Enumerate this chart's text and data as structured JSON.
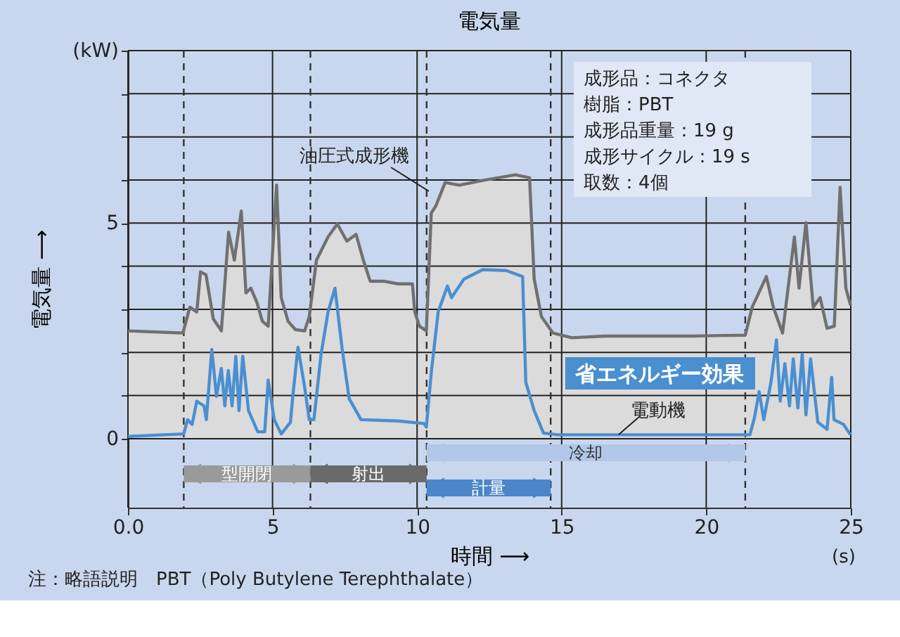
{
  "chart_data": {
    "type": "line",
    "title": "電気量",
    "xlabel": "時間 ⟶",
    "ylabel": "電気量 ⟶",
    "xlim": [
      0,
      25
    ],
    "ylim": [
      -1.6,
      9
    ],
    "xticks": [
      {
        "value": 0,
        "label": "0.0"
      },
      5,
      10,
      15,
      20,
      25
    ],
    "yticks": [
      0,
      {
        "value": 1,
        "label": null
      },
      {
        "value": 2,
        "label": null
      },
      {
        "value": 3,
        "label": null
      },
      {
        "value": 4,
        "label": null
      },
      5,
      {
        "value": 6,
        "label": null
      },
      {
        "value": 7,
        "label": null
      },
      {
        "value": 8,
        "label": null
      },
      {
        "value": 9,
        "label": "(kW)"
      }
    ],
    "grid": true,
    "marker": "none",
    "line_style": "solid",
    "series": [
      {
        "name": "油圧式成形機",
        "type": "area",
        "color": "#707070",
        "x": [
          0,
          1.9,
          2.14,
          2.38,
          2.51,
          2.7,
          2.95,
          3.23,
          3.48,
          3.68,
          3.92,
          4.08,
          4.25,
          4.46,
          4.65,
          4.85,
          5.14,
          5.3,
          5.54,
          5.79,
          6.11,
          6.27,
          6.52,
          6.92,
          7.24,
          7.57,
          7.89,
          8.14,
          8.38,
          8.87,
          9.35,
          9.84,
          9.92,
          10.08,
          10.32,
          10.49,
          10.65,
          10.97,
          11.46,
          12.27,
          13.4,
          13.89,
          14.05,
          14.3,
          14.7,
          15.35,
          16.5,
          18,
          19.5,
          21.35,
          21.59,
          22.08,
          22.32,
          22.64,
          23.05,
          23.21,
          23.45,
          23.7,
          23.94,
          24.18,
          24.43,
          24.63,
          24.83,
          24.99
        ],
        "values": [
          2.5,
          2.45,
          3.05,
          2.94,
          3.87,
          3.8,
          2.78,
          2.5,
          4.79,
          4.14,
          5.28,
          3.38,
          3.49,
          3.16,
          2.72,
          2.61,
          5.88,
          3.27,
          2.72,
          2.53,
          2.5,
          2.83,
          4.14,
          4.68,
          4.98,
          4.58,
          4.74,
          4.14,
          3.65,
          3.65,
          3.59,
          3.59,
          2.94,
          2.61,
          2.5,
          5.23,
          5.4,
          5.94,
          5.88,
          5.99,
          6.12,
          6.05,
          3.7,
          2.83,
          2.45,
          2.34,
          2.38,
          2.38,
          2.38,
          2.4,
          3.05,
          3.76,
          3.05,
          2.45,
          4.68,
          3.49,
          5.01,
          3.05,
          3.27,
          2.56,
          2.61,
          5.83,
          3.49,
          3.1
        ]
      },
      {
        "name": "電動機",
        "color": "#4a8fd0",
        "x": [
          0,
          1.93,
          2.06,
          2.22,
          2.38,
          2.63,
          2.71,
          2.9,
          3.06,
          3.23,
          3.35,
          3.47,
          3.6,
          3.73,
          3.84,
          3.97,
          4.17,
          4.49,
          4.73,
          4.85,
          5.06,
          5.3,
          5.62,
          5.7,
          5.88,
          6.11,
          6.27,
          6.43,
          6.68,
          6.92,
          7.16,
          7.41,
          7.65,
          8.06,
          9.35,
          10.24,
          10.32,
          10.49,
          10.73,
          11.05,
          11.19,
          11.62,
          12.27,
          13.08,
          13.65,
          13.76,
          14.05,
          14.37,
          14.86,
          21.51,
          21.67,
          21.83,
          21.99,
          22.24,
          22.43,
          22.56,
          22.72,
          22.88,
          23.01,
          23.17,
          23.32,
          23.45,
          23.61,
          23.86,
          24.18,
          24.34,
          24.42,
          24.75,
          24.99
        ],
        "values": [
          0.05,
          0.11,
          0.44,
          0.33,
          0.87,
          0.76,
          0.44,
          2.07,
          0.98,
          1.63,
          0.76,
          1.58,
          0.76,
          1.91,
          0.65,
          1.91,
          0.65,
          0.16,
          0.16,
          1.36,
          0.44,
          0.11,
          0.38,
          0.98,
          2.12,
          1.2,
          0.44,
          0.44,
          1.96,
          2.94,
          3.49,
          2.07,
          0.93,
          0.44,
          0.41,
          0.35,
          0.27,
          1.53,
          2.94,
          3.54,
          3.27,
          3.7,
          3.92,
          3.9,
          3.76,
          1.31,
          0.65,
          0.13,
          0.09,
          0.09,
          0.49,
          1.09,
          0.44,
          1.31,
          2.29,
          0.87,
          1.74,
          0.76,
          1.85,
          0.71,
          1.96,
          0.55,
          1.85,
          0.38,
          0.22,
          1.42,
          0.44,
          0.33,
          0.09
        ]
      }
    ],
    "ref_lines": [
      {
        "axis": "x",
        "value": 1.93,
        "color": "#333333",
        "line_style": "dashed"
      },
      {
        "axis": "x",
        "value": 6.31,
        "color": "#333333",
        "line_style": "dashed"
      },
      {
        "axis": "x",
        "value": 10.33,
        "color": "#333333",
        "line_style": "dashed"
      },
      {
        "axis": "x",
        "value": 14.62,
        "color": "#333333",
        "line_style": "dashed"
      },
      {
        "axis": "x",
        "value": 21.35,
        "color": "#333333",
        "line_style": "dashed"
      }
    ],
    "annotations": [
      "成形品：コネクタ",
      "樹脂：PBT",
      "成形品重量：19 g",
      "成形サイクル：19 s",
      "取数：4個",
      "省エネルギー効果",
      "型開閉",
      "射出",
      "冷却",
      "計量",
      "(s)",
      "注：略語説明　PBT（Poly Butylene Terephthalate）"
    ]
  }
}
